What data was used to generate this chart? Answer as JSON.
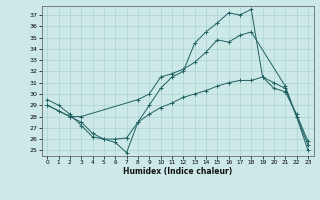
{
  "xlabel": "Humidex (Indice chaleur)",
  "xlim": [
    -0.5,
    23.5
  ],
  "ylim": [
    24.5,
    37.8
  ],
  "yticks": [
    25,
    26,
    27,
    28,
    29,
    30,
    31,
    32,
    33,
    34,
    35,
    36,
    37
  ],
  "xticks": [
    0,
    1,
    2,
    3,
    4,
    5,
    6,
    7,
    8,
    9,
    10,
    11,
    12,
    13,
    14,
    15,
    16,
    17,
    18,
    19,
    20,
    21,
    22,
    23
  ],
  "bg_color": "#cce9e8",
  "grid_color": "#aad3d2",
  "line_color": "#206060",
  "line1_x": [
    0,
    1,
    2,
    3,
    4,
    5,
    6,
    7,
    8,
    9,
    10,
    11,
    12,
    13,
    14,
    15,
    16,
    17,
    18,
    19,
    20,
    21,
    22,
    23
  ],
  "line1_y": [
    29.0,
    28.5,
    28.0,
    27.5,
    26.5,
    26.0,
    25.7,
    24.8,
    27.5,
    29.0,
    30.5,
    31.5,
    32.0,
    34.5,
    35.5,
    36.3,
    37.2,
    37.0,
    37.5,
    31.5,
    31.0,
    30.5,
    28.0,
    25.0
  ],
  "line2_x": [
    0,
    2,
    3,
    8,
    9,
    10,
    11,
    12,
    13,
    14,
    15,
    16,
    17,
    18,
    21,
    22,
    23
  ],
  "line2_y": [
    29.0,
    28.0,
    28.0,
    29.5,
    30.0,
    31.5,
    31.8,
    32.2,
    32.8,
    33.7,
    34.8,
    34.6,
    35.2,
    35.5,
    30.7,
    28.0,
    25.5
  ],
  "line3_x": [
    0,
    1,
    2,
    3,
    4,
    5,
    6,
    7,
    8,
    9,
    10,
    11,
    12,
    13,
    14,
    15,
    16,
    17,
    18,
    19,
    20,
    21,
    22,
    23
  ],
  "line3_y": [
    29.5,
    29.0,
    28.2,
    27.2,
    26.2,
    26.0,
    26.0,
    26.1,
    27.5,
    28.2,
    28.8,
    29.2,
    29.7,
    30.0,
    30.3,
    30.7,
    31.0,
    31.2,
    31.2,
    31.5,
    30.5,
    30.2,
    28.2,
    25.8
  ]
}
